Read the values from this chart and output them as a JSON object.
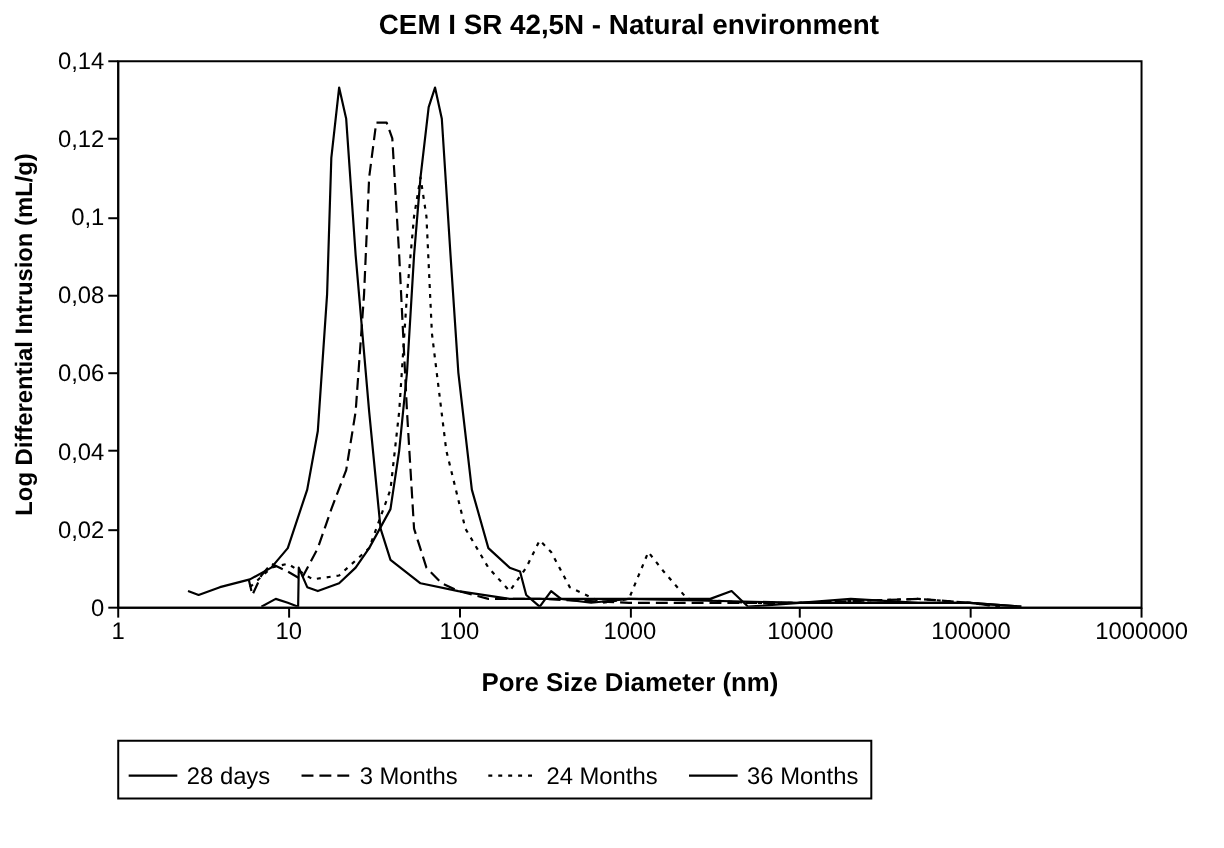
{
  "chart_data": {
    "type": "line",
    "title": "CEM I SR 42,5N - Natural environment",
    "xlabel": "Pore Size Diameter (nm)",
    "ylabel": "Log Differential Intrusion (mL/g)",
    "log": "x",
    "xlim": [
      1,
      1000000
    ],
    "xticks": [
      1,
      10,
      100,
      1000,
      10000,
      100000,
      1000000
    ],
    "ylim": [
      0,
      0.14
    ],
    "yticks": [
      0,
      {
        "value": 0.02,
        "label": "0,02"
      },
      {
        "value": 0.04,
        "label": "0,04"
      },
      {
        "value": 0.06,
        "label": "0,06"
      },
      {
        "value": 0.08,
        "label": "0,08"
      },
      {
        "value": 0.1,
        "label": "0,1"
      },
      {
        "value": 0.12,
        "label": "0,12"
      },
      {
        "value": 0.14,
        "label": "0,14"
      }
    ],
    "grid": false,
    "legend": "bottom",
    "marker": "none",
    "series": [
      {
        "name": "28 days",
        "color": "#000000",
        "line_style": "solid",
        "x": [
          2.6,
          3,
          4,
          6,
          8,
          10,
          13,
          15,
          17,
          18,
          20,
          22,
          25,
          30,
          35,
          40,
          60,
          100,
          200,
          1000,
          10000,
          100000,
          200000
        ],
        "values": [
          0.004,
          0.003,
          0.005,
          0.007,
          0.01,
          0.015,
          0.03,
          0.045,
          0.08,
          0.115,
          0.133,
          0.125,
          0.09,
          0.05,
          0.02,
          0.012,
          0.006,
          0.004,
          0.002,
          0.002,
          0.001,
          0.001,
          0
        ]
      },
      {
        "name": "3 Months",
        "color": "#000000",
        "line_style": "dashed",
        "x": [
          5.9,
          6.2,
          7,
          8,
          10,
          12,
          15,
          18,
          22,
          25,
          28,
          30,
          33,
          38,
          41,
          45,
          50,
          55,
          65,
          80,
          100,
          150,
          300,
          1000,
          10000,
          50000,
          100000,
          150000
        ],
        "values": [
          0.007,
          0.003,
          0.008,
          0.011,
          0.009,
          0.007,
          0.015,
          0.025,
          0.035,
          0.05,
          0.08,
          0.11,
          0.124,
          0.124,
          0.12,
          0.09,
          0.05,
          0.02,
          0.01,
          0.006,
          0.004,
          0.002,
          0.002,
          0.001,
          0.001,
          0.002,
          0.001,
          0
        ]
      },
      {
        "name": "24 Months",
        "color": "#000000",
        "line_style": "dotted",
        "x": [
          6,
          8,
          10,
          14,
          20,
          30,
          40,
          45,
          50,
          55,
          60,
          65,
          70,
          85,
          110,
          150,
          200,
          250,
          300,
          350,
          450,
          700,
          1000,
          1300,
          1600,
          2200,
          5000,
          10000,
          50000,
          100000,
          150000
        ],
        "values": [
          0.005,
          0.01,
          0.011,
          0.007,
          0.008,
          0.015,
          0.03,
          0.05,
          0.08,
          0.1,
          0.11,
          0.1,
          0.07,
          0.04,
          0.02,
          0.01,
          0.004,
          0.01,
          0.017,
          0.014,
          0.005,
          0.001,
          0.002,
          0.014,
          0.009,
          0.002,
          0.001,
          0.001,
          0.002,
          0.001,
          0
        ]
      },
      {
        "name": "36 Months",
        "color": "#000000",
        "line_style": "solid",
        "x": [
          7,
          8.5,
          10,
          11.5,
          11.6,
          13,
          15,
          20,
          25,
          30,
          40,
          45,
          50,
          55,
          60,
          67,
          73,
          80,
          90,
          100,
          120,
          150,
          200,
          230,
          250,
          300,
          350,
          400,
          600,
          1000,
          3000,
          4000,
          5000,
          10000,
          20000,
          50000,
          100000,
          200000
        ],
        "values": [
          0,
          0.002,
          0.001,
          0,
          0.01,
          0.005,
          0.004,
          0.006,
          0.01,
          0.015,
          0.025,
          0.04,
          0.06,
          0.09,
          0.11,
          0.128,
          0.133,
          0.125,
          0.09,
          0.06,
          0.03,
          0.015,
          0.01,
          0.009,
          0.003,
          0,
          0.004,
          0.002,
          0.001,
          0.002,
          0.002,
          0.004,
          0,
          0.001,
          0.002,
          0.001,
          0.001,
          0
        ]
      }
    ]
  }
}
